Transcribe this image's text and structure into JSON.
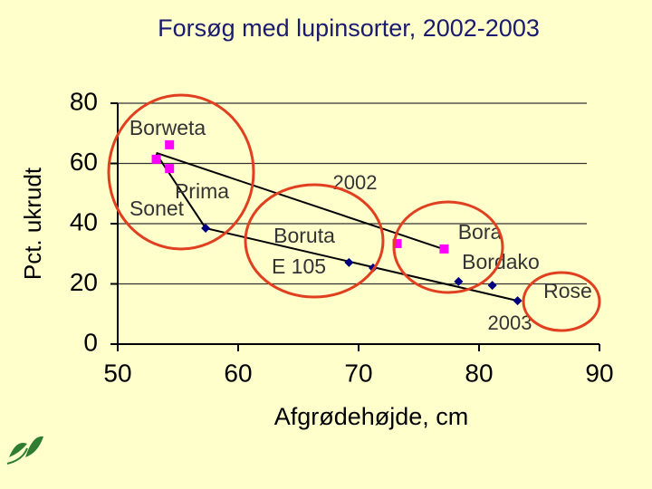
{
  "chart_data": {
    "type": "scatter",
    "title": "Forsøg med lupinsorter, 2002-2003",
    "x_label": "Afgrødehøjde, cm",
    "y_label": "Pct. ukrudt",
    "xlim": [
      50,
      90
    ],
    "xticks": [
      50,
      60,
      70,
      80,
      90
    ],
    "ylim": [
      0,
      80
    ],
    "yticks": [
      0,
      20,
      40,
      60,
      80
    ],
    "grid": true,
    "series": [
      {
        "name": "2002",
        "color": "#ff00ff",
        "marker": "square",
        "x": [
          54.3,
          53.2,
          54.3,
          73.2,
          77.1
        ],
        "values": [
          66.2,
          61.4,
          58.3,
          33.4,
          31.6
        ],
        "trend_x": [
          53.2,
          77.1
        ],
        "trend_values": [
          63.5,
          31.5
        ]
      },
      {
        "name": "2003",
        "color": "#000080",
        "marker": "diamond",
        "x": [
          57.3,
          69.2,
          71.2,
          78.3,
          81.1,
          83.2
        ],
        "values": [
          38.5,
          27.1,
          25.3,
          20.8,
          19.5,
          14.4
        ],
        "trend_x": [
          53.2,
          57.3,
          83.2
        ],
        "trend_values": [
          63.2,
          38.5,
          14.4
        ]
      }
    ],
    "annotations": [
      "Borweta",
      "Prima",
      "Sonet",
      "Boruta",
      "E 105",
      "Bora",
      "Bordako",
      "Rose"
    ]
  }
}
